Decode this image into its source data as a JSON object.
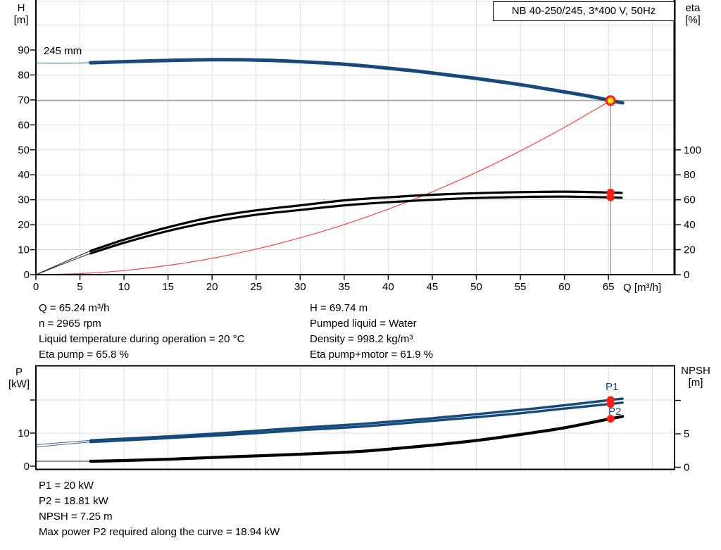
{
  "colors": {
    "blue": "#164a7d",
    "red": "#fb1d14",
    "yellow": "#ffe10a",
    "duty_gray": "#9b9b9b",
    "grid": "#dcdcdc",
    "black": "#000000"
  },
  "title_box": {
    "label": "NB 40-250/245, 3*400 V, 50Hz"
  },
  "info_blocks": {
    "left": [
      "Q = 65.24 m³/h",
      "n = 2965 rpm",
      "Liquid temperature during operation = 20 °C",
      "Eta pump = 65.8 %"
    ],
    "right": [
      "H = 69.74 m",
      "Pumped liquid = Water",
      "Density = 998.2 kg/m³",
      "Eta pump+motor = 61.9 %"
    ],
    "bottom": [
      "P1 = 20 kW",
      "P2 = 18.81 kW",
      "NPSH = 7.25 m",
      "Max power P2 required along the curve = 18.94 kW"
    ]
  },
  "chart_data": [
    {
      "type": "line",
      "title": "NB 40-250/245, 3*400 V, 50Hz",
      "impeller_label": "245 mm",
      "x_axis": {
        "name": "Q",
        "unit": "[m³/h]",
        "label": "Q [m³/h]",
        "range": [
          0,
          72.5
        ],
        "ticks": [
          0,
          5,
          10,
          15,
          20,
          25,
          30,
          35,
          40,
          45,
          50,
          55,
          60,
          65
        ],
        "grid_step": 5,
        "grid_max": 70
      },
      "y_left": {
        "name": "H",
        "unit": "[m]",
        "range": [
          0,
          110
        ],
        "ticks": [
          0,
          10,
          20,
          30,
          40,
          50,
          60,
          70,
          80,
          90
        ],
        "grid_step": 10,
        "grid_max": 100
      },
      "y_right": {
        "name": "eta",
        "unit": "[%]",
        "range": [
          0,
          220
        ],
        "ticks": [
          0,
          20,
          40,
          60,
          80,
          100
        ]
      },
      "duty_point": {
        "Q": 65.24,
        "H": 69.74
      },
      "series": [
        {
          "name": "head",
          "axis": "left",
          "color": "blue",
          "width": 5,
          "thick_from": 6.2,
          "points": [
            [
              0,
              84.8
            ],
            [
              3,
              84.7
            ],
            [
              6.2,
              84.9
            ],
            [
              10,
              85.3
            ],
            [
              15,
              85.8
            ],
            [
              20,
              86.1
            ],
            [
              25,
              86.0
            ],
            [
              30,
              85.3
            ],
            [
              35,
              84.3
            ],
            [
              40,
              82.7
            ],
            [
              45,
              80.8
            ],
            [
              50,
              78.6
            ],
            [
              55,
              76.1
            ],
            [
              60,
              73.2
            ],
            [
              63,
              71.4
            ],
            [
              65.24,
              69.74
            ],
            [
              66.6,
              68.8
            ]
          ]
        },
        {
          "name": "system-curve",
          "axis": "left",
          "color": "red",
          "width": 1.2,
          "points": [
            [
              0,
              0
            ],
            [
              5,
              0.41
            ],
            [
              10,
              1.64
            ],
            [
              15,
              3.69
            ],
            [
              20,
              6.55
            ],
            [
              25,
              10.24
            ],
            [
              30,
              14.75
            ],
            [
              35,
              20.07
            ],
            [
              40,
              26.22
            ],
            [
              45,
              33.18
            ],
            [
              50,
              40.97
            ],
            [
              55,
              49.57
            ],
            [
              60,
              59.0
            ],
            [
              65.24,
              69.74
            ]
          ]
        },
        {
          "name": "eta-pump",
          "axis": "right",
          "color": "black",
          "width": 3.2,
          "thick_from": 6.2,
          "points": [
            [
              0,
              0
            ],
            [
              6.2,
              19
            ],
            [
              10,
              28
            ],
            [
              15,
              38
            ],
            [
              20,
              46
            ],
            [
              25,
              51.5
            ],
            [
              30,
              55.5
            ],
            [
              35,
              59.5
            ],
            [
              40,
              62
            ],
            [
              45,
              64
            ],
            [
              50,
              65.3
            ],
            [
              55,
              66.1
            ],
            [
              60,
              66.5
            ],
            [
              65.24,
              65.8
            ],
            [
              66.5,
              65.5
            ]
          ]
        },
        {
          "name": "eta-pump-motor",
          "axis": "right",
          "color": "black",
          "width": 3.2,
          "thick_from": 6.2,
          "points": [
            [
              0,
              0
            ],
            [
              6.2,
              17
            ],
            [
              10,
              25.5
            ],
            [
              15,
              35
            ],
            [
              20,
              42.5
            ],
            [
              25,
              48
            ],
            [
              30,
              51.8
            ],
            [
              35,
              55.5
            ],
            [
              40,
              58
            ],
            [
              45,
              60
            ],
            [
              50,
              61.4
            ],
            [
              55,
              62.2
            ],
            [
              60,
              62.5
            ],
            [
              65.24,
              61.9
            ],
            [
              66.5,
              61.6
            ]
          ]
        }
      ],
      "markers": [
        {
          "name": "duty-point",
          "axis": "left",
          "Q": 65.24,
          "value": 69.74,
          "style": "duty"
        },
        {
          "name": "eta-pump-point",
          "axis": "right",
          "Q": 65.24,
          "value": 65.8,
          "style": "red"
        },
        {
          "name": "eta-pump-motor-point",
          "axis": "right",
          "Q": 65.24,
          "value": 61.9,
          "style": "red"
        }
      ]
    },
    {
      "type": "line",
      "x_axis": {
        "name": "Q",
        "unit": "[m³/h]",
        "range": [
          0,
          72.5
        ],
        "grid_step": 5,
        "grid_max": 70
      },
      "y_left": {
        "name": "P",
        "unit": "[kW]",
        "range": [
          0,
          30
        ],
        "ticks": [
          0,
          10,
          20
        ],
        "labeled_ticks": [
          0,
          10
        ]
      },
      "y_right": {
        "name": "NPSH",
        "unit": "[m]",
        "range": [
          0,
          15
        ],
        "ticks": [
          0,
          5,
          10
        ],
        "labeled_ticks": [
          0,
          5
        ]
      },
      "series": [
        {
          "name": "p1",
          "label": "P1",
          "axis": "left",
          "color": "blue",
          "width": 3.4,
          "thick_from": 6.2,
          "points": [
            [
              0,
              6.5
            ],
            [
              6.2,
              7.8
            ],
            [
              10,
              8.3
            ],
            [
              15,
              9.0
            ],
            [
              20,
              9.8
            ],
            [
              25,
              10.7
            ],
            [
              30,
              11.6
            ],
            [
              36,
              12.6
            ],
            [
              40,
              13.4
            ],
            [
              45,
              14.5
            ],
            [
              50,
              15.7
            ],
            [
              55,
              17.0
            ],
            [
              60,
              18.4
            ],
            [
              65.24,
              20.0
            ],
            [
              66.6,
              20.4
            ]
          ]
        },
        {
          "name": "p2",
          "label": "P2",
          "axis": "left",
          "color": "blue",
          "width": 3.4,
          "thick_from": 6.2,
          "points": [
            [
              0,
              5.8
            ],
            [
              6.2,
              7.3
            ],
            [
              10,
              7.8
            ],
            [
              15,
              8.5
            ],
            [
              20,
              9.2
            ],
            [
              25,
              10.0
            ],
            [
              30,
              10.9
            ],
            [
              36,
              11.8
            ],
            [
              40,
              12.6
            ],
            [
              45,
              13.7
            ],
            [
              50,
              14.8
            ],
            [
              55,
              16.0
            ],
            [
              60,
              17.4
            ],
            [
              65.24,
              18.81
            ],
            [
              66.6,
              19.2
            ]
          ]
        },
        {
          "name": "npsh",
          "axis": "right",
          "color": "black",
          "width": 4.2,
          "thick_from": 6.2,
          "points": [
            [
              0,
              0.9
            ],
            [
              6.2,
              0.9
            ],
            [
              10,
              1.0
            ],
            [
              15,
              1.2
            ],
            [
              20,
              1.45
            ],
            [
              25,
              1.7
            ],
            [
              30,
              1.95
            ],
            [
              36,
              2.3
            ],
            [
              40,
              2.7
            ],
            [
              45,
              3.3
            ],
            [
              50,
              4.0
            ],
            [
              55,
              4.9
            ],
            [
              60,
              5.9
            ],
            [
              65.24,
              7.25
            ],
            [
              66.6,
              7.6
            ]
          ]
        }
      ],
      "markers": [
        {
          "name": "p1-point",
          "axis": "left",
          "Q": 65.24,
          "value": 20.0,
          "style": "red"
        },
        {
          "name": "p2-point",
          "axis": "left",
          "Q": 65.24,
          "value": 18.81,
          "style": "red"
        },
        {
          "name": "npsh-point",
          "axis": "right",
          "Q": 65.24,
          "value": 7.25,
          "style": "red"
        }
      ]
    }
  ]
}
